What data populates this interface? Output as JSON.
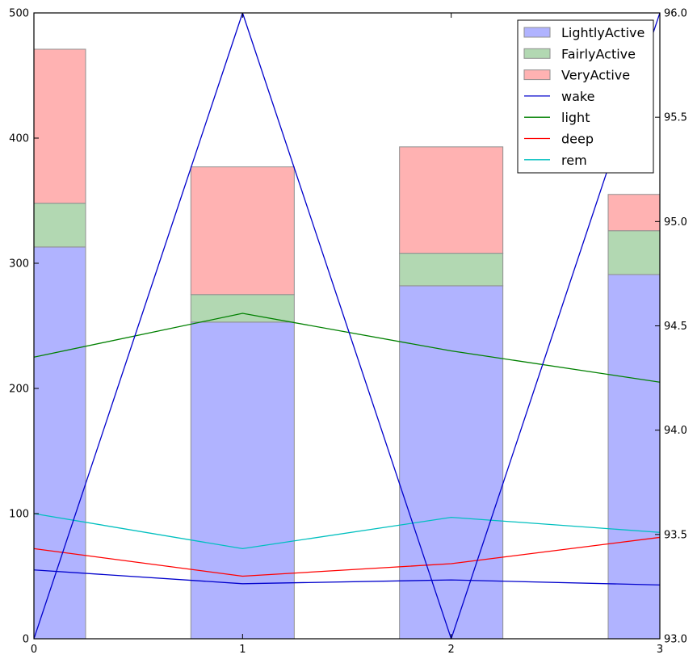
{
  "chart_data": {
    "type": "bar",
    "x": [
      0,
      1,
      2,
      3
    ],
    "x_ticks": [
      "0",
      "1",
      "2",
      "3"
    ],
    "xlim": [
      0,
      3
    ],
    "ylim_left": [
      0,
      500
    ],
    "y_ticks_left": [
      0,
      100,
      200,
      300,
      400,
      500
    ],
    "ylim_right": [
      93.0,
      96.0
    ],
    "y_ticks_right": [
      "93.0",
      "93.5",
      "94.0",
      "94.5",
      "95.0",
      "95.5",
      "96.0"
    ],
    "grid": false,
    "legend_position": "top-right",
    "stacked_bars": [
      {
        "name": "LightlyActive",
        "color": "#b0b3ff",
        "values": [
          313,
          253,
          282,
          291
        ]
      },
      {
        "name": "FairlyActive",
        "color": "#b2d8b2",
        "values": [
          35,
          22,
          26,
          35
        ]
      },
      {
        "name": "VeryActive",
        "color": "#ffb2b2",
        "values": [
          123,
          102,
          85,
          29
        ]
      }
    ],
    "lines": [
      {
        "name": "wake",
        "color": "#0000cc",
        "axis": "left",
        "values": [
          55,
          44,
          47,
          43
        ]
      },
      {
        "name": "light",
        "color": "#008000",
        "axis": "left",
        "values": [
          225,
          260,
          230,
          205
        ]
      },
      {
        "name": "deep",
        "color": "#ff0000",
        "axis": "left",
        "values": [
          72,
          50,
          60,
          81
        ]
      },
      {
        "name": "rem",
        "color": "#00bfbf",
        "axis": "left",
        "values": [
          100,
          72,
          97,
          85
        ]
      }
    ],
    "secondary_line": {
      "color": "#0000cc",
      "axis": "right",
      "values": [
        93.0,
        96.0,
        93.0,
        96.0
      ]
    }
  }
}
